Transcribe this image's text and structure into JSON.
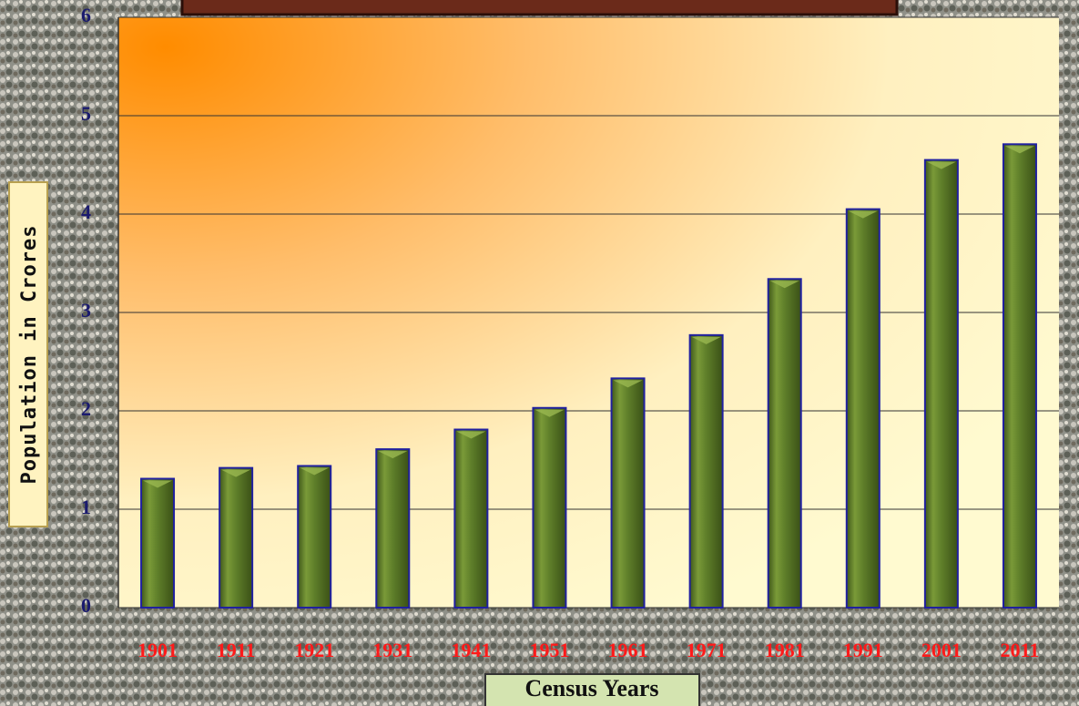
{
  "chart_data": {
    "type": "bar",
    "xlabel": "Census Years",
    "ylabel": "Population in Crores",
    "categories": [
      "1901",
      "1911",
      "1921",
      "1931",
      "1941",
      "1951",
      "1961",
      "1971",
      "1981",
      "1991",
      "2001",
      "2011"
    ],
    "values": [
      1.31,
      1.42,
      1.44,
      1.61,
      1.81,
      2.03,
      2.33,
      2.77,
      3.34,
      4.05,
      4.55,
      4.71
    ],
    "color": "#5a7a28",
    "ylim": [
      0,
      6
    ],
    "yticks": [
      0,
      1,
      2,
      3,
      4,
      5,
      6
    ],
    "grid": true
  }
}
